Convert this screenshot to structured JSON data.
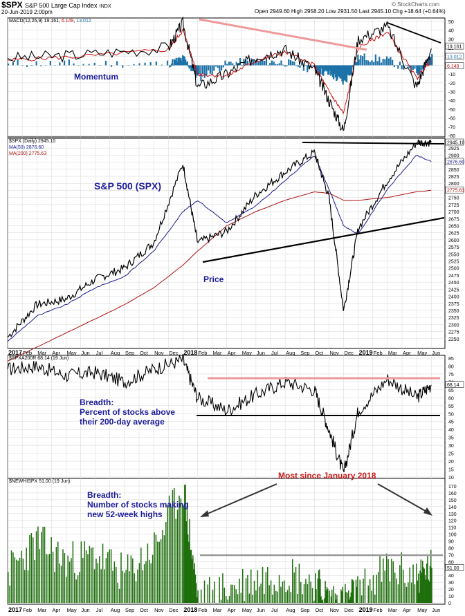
{
  "header": {
    "symbol": "$SPX",
    "name": "S&P 500 Large Cap Index",
    "exchange": "INDX",
    "date": "20-Jun-2019 2:00pm",
    "quote": "Open 2949.60  High 2958.20  Low 2931.50  Last 2945.10  Chg +18.64 (+0.64%)",
    "brand": "© StockCharts.com"
  },
  "panels": {
    "macd": {
      "legend_label": "MACD(12,26,9)",
      "legend_macd": "19.161",
      "legend_signal": "6.149",
      "legend_hist": "13.012",
      "annotation": "Momentum",
      "axis_ticks": [
        50,
        40,
        30,
        20,
        10,
        0,
        -10,
        -20,
        -30,
        -40,
        -50,
        -60,
        -70,
        -80
      ],
      "last_labels": [
        "19.161",
        "13.012",
        "6.149"
      ]
    },
    "price": {
      "legend_price": "$SPX (Daily) 2945.10",
      "legend_ma50": "MA(50) 2876.60",
      "legend_ma200": "MA(200) 2775.63",
      "annotation_title": "S&P 500 (SPX)",
      "annotation_price": "Price",
      "axis_ticks": [
        2925,
        2900,
        2875,
        2850,
        2825,
        2800,
        2775,
        2750,
        2725,
        2700,
        2675,
        2650,
        2625,
        2600,
        2575,
        2550,
        2525,
        2500,
        2475,
        2450,
        2425,
        2400,
        2375,
        2350,
        2325,
        2300,
        2275,
        2250
      ],
      "last_labels": [
        "2945.10",
        "2876.60",
        "2775.63"
      ]
    },
    "breadth200": {
      "legend": "$SPXA200R 68.14 (19 Jun)",
      "annotation": [
        "Breadth:",
        "Percent of stocks above",
        "their 200-day average"
      ],
      "axis_ticks": [
        85,
        80,
        75,
        70,
        65,
        60,
        55,
        50,
        45,
        40,
        35,
        30,
        25,
        20,
        15,
        10
      ],
      "last_label": "68.14"
    },
    "newhighs": {
      "legend": "$NEWHISPX 51.00 (19 Jun)",
      "annotation": [
        "Breadth:",
        "Number of stocks making",
        "new 52-week highs"
      ],
      "callout": "Most since January 2018",
      "axis_ticks": [
        170,
        160,
        150,
        140,
        130,
        120,
        110,
        100,
        90,
        80,
        70,
        60,
        50,
        40,
        30,
        20,
        10,
        0
      ],
      "last_label": "51.00"
    }
  },
  "x_axis_labels": [
    "2017",
    "Feb",
    "Mar",
    "Apr",
    "May",
    "Jun",
    "Jul",
    "Aug",
    "Sep",
    "Oct",
    "Nov",
    "Dec",
    "2018",
    "Feb",
    "Mar",
    "Apr",
    "May",
    "Jun",
    "Jul",
    "Aug",
    "Sep",
    "Oct",
    "Nov",
    "Dec",
    "2019",
    "Feb",
    "Mar",
    "Apr",
    "May",
    "Jun"
  ],
  "colors": {
    "price": "#000000",
    "ma50": "#1a1a8c",
    "ma200": "#b01010",
    "histogram": "#1d72a8",
    "trend_pink": "#ef9a9a",
    "bars": "#1f6e0d",
    "note_blue": "#1c1c9a",
    "note_red": "#cc1a1a",
    "grid": "#d6d6d6"
  },
  "chart_data": [
    {
      "type": "line",
      "name": "MACD(12,26,9)",
      "x": [
        "2017-01",
        "2017-06",
        "2017-12",
        "2018-01",
        "2018-02",
        "2018-04",
        "2018-06",
        "2018-08",
        "2018-10",
        "2018-11",
        "2018-12",
        "2019-01",
        "2019-03",
        "2019-05",
        "2019-06"
      ],
      "series": [
        {
          "name": "MACD",
          "values": [
            8,
            12,
            20,
            48,
            -25,
            -10,
            10,
            18,
            -5,
            -40,
            -75,
            30,
            44,
            -25,
            19.161
          ]
        },
        {
          "name": "Signal",
          "values": [
            6,
            10,
            18,
            40,
            -10,
            -12,
            5,
            15,
            0,
            -30,
            -55,
            20,
            38,
            -15,
            6.149
          ]
        },
        {
          "name": "Histogram",
          "values": [
            2,
            2,
            2,
            8,
            -15,
            2,
            5,
            3,
            -5,
            -10,
            -20,
            10,
            6,
            -10,
            13.012
          ]
        }
      ],
      "ylim": [
        -80,
        50
      ]
    },
    {
      "type": "line",
      "name": "$SPX (Daily)",
      "x": [
        "2017-01",
        "2017-03",
        "2017-05",
        "2017-07",
        "2017-09",
        "2017-11",
        "2018-01",
        "2018-02",
        "2018-04",
        "2018-06",
        "2018-08",
        "2018-10",
        "2018-11",
        "2018-12",
        "2019-01",
        "2019-03",
        "2019-05",
        "2019-06"
      ],
      "series": [
        {
          "name": "$SPX",
          "values": [
            2255,
            2370,
            2390,
            2460,
            2500,
            2590,
            2870,
            2590,
            2630,
            2760,
            2840,
            2910,
            2750,
            2350,
            2640,
            2810,
            2945,
            2945.1
          ]
        },
        {
          "name": "MA(50)",
          "values": [
            2240,
            2330,
            2370,
            2430,
            2470,
            2560,
            2700,
            2740,
            2660,
            2720,
            2810,
            2900,
            2780,
            2650,
            2620,
            2780,
            2900,
            2876.6
          ]
        },
        {
          "name": "MA(200)",
          "values": [
            2170,
            2220,
            2270,
            2320,
            2370,
            2430,
            2510,
            2560,
            2650,
            2700,
            2740,
            2770,
            2765,
            2740,
            2740,
            2750,
            2770,
            2775.63
          ]
        }
      ],
      "ylim": [
        2225,
        2950
      ]
    },
    {
      "type": "line",
      "name": "$SPXA200R",
      "x": [
        "2017-01",
        "2017-03",
        "2017-05",
        "2017-07",
        "2017-09",
        "2017-11",
        "2018-01",
        "2018-02",
        "2018-04",
        "2018-06",
        "2018-08",
        "2018-10",
        "2018-11",
        "2018-12",
        "2019-01",
        "2019-03",
        "2019-05",
        "2019-06"
      ],
      "series": [
        {
          "name": "$SPXA200R",
          "values": [
            78,
            80,
            74,
            76,
            70,
            78,
            84,
            60,
            52,
            62,
            70,
            65,
            40,
            12,
            52,
            72,
            60,
            68.14
          ]
        }
      ],
      "ylim": [
        10,
        85
      ]
    },
    {
      "type": "bar",
      "name": "$NEWHISPX",
      "x": [
        "2017-01",
        "2017-03",
        "2017-05",
        "2017-07",
        "2017-09",
        "2017-11",
        "2018-01",
        "2018-02",
        "2018-04",
        "2018-06",
        "2018-08",
        "2018-10",
        "2018-11",
        "2018-12",
        "2019-01",
        "2019-03",
        "2019-05",
        "2019-06"
      ],
      "series": [
        {
          "name": "$NEWHISPX",
          "values": [
            45,
            90,
            60,
            70,
            40,
            80,
            170,
            5,
            20,
            35,
            45,
            30,
            5,
            2,
            15,
            50,
            40,
            51.0
          ]
        }
      ],
      "ylim": [
        0,
        170
      ]
    }
  ]
}
